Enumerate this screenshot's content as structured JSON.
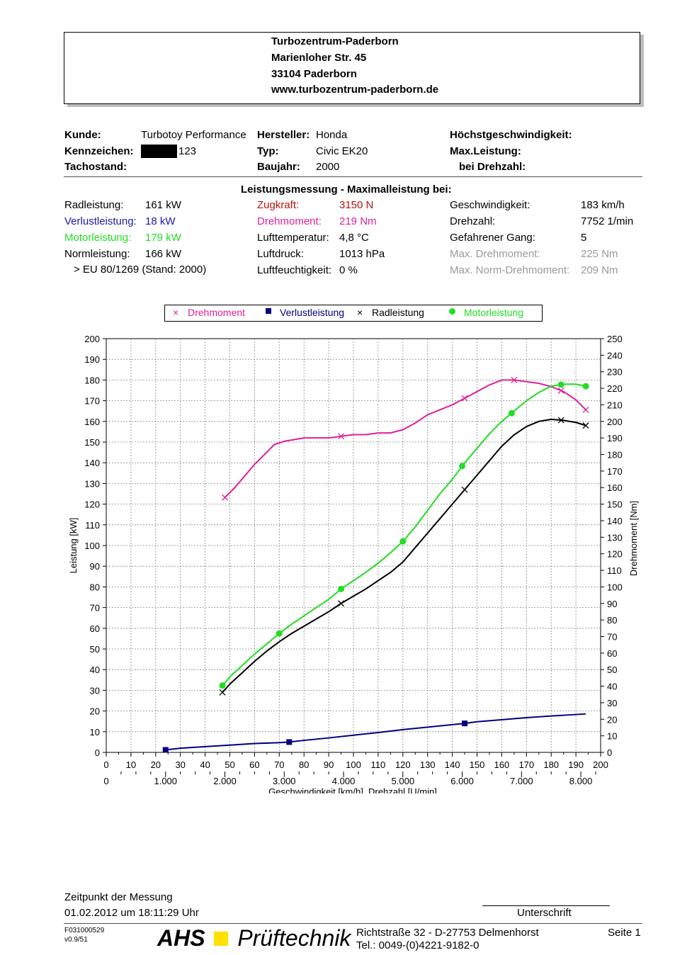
{
  "header": {
    "line1": "Turbozentrum-Paderborn",
    "line2": "Marienloher Str. 45",
    "line3": "33104 Paderborn",
    "line4": "www.turbozentrum-paderborn.de"
  },
  "info": {
    "kunde_label": "Kunde:",
    "kunde_value": "Turbotoy Performance",
    "kennzeichen_label": "Kennzeichen:",
    "kennzeichen_value": "123",
    "tachostand_label": "Tachostand:",
    "hersteller_label": "Hersteller:",
    "hersteller_value": "Honda",
    "typ_label": "Typ:",
    "typ_value": "Civic EK20",
    "baujahr_label": "Baujahr:",
    "baujahr_value": "2000",
    "hoechst_label": "Höchstgeschwindigkeit:",
    "maxleistung_label": "Max.Leistung:",
    "beidrehzahl_label": "bei Drehzahl:"
  },
  "measurement": {
    "title": "Leistungsmessung - Maximalleistung bei:",
    "col1": [
      {
        "label": "Radleistung:",
        "value": "161 kW",
        "color": "#000000"
      },
      {
        "label": "Verlustleistung:",
        "value": "18 kW",
        "color": "#1a1aaa"
      },
      {
        "label": "Motorleistung:",
        "value": "179 kW",
        "color": "#22dd22"
      },
      {
        "label": "Normleistung:",
        "value": "166 kW",
        "color": "#000000"
      }
    ],
    "norm_note": "> EU 80/1269 (Stand: 2000)",
    "col2": [
      {
        "label": "Zugkraft:",
        "value": "3150 N",
        "color": "#bb1111"
      },
      {
        "label": "Drehmoment:",
        "value": "219 Nm",
        "color": "#e0209a"
      },
      {
        "label": "Lufttemperatur:",
        "value": "4,8 °C",
        "color": "#000000"
      },
      {
        "label": "Luftdruck:",
        "value": "1013 hPa",
        "color": "#000000"
      },
      {
        "label": "Luftfeuchtigkeit:",
        "value": "0 %",
        "color": "#000000"
      }
    ],
    "col3": [
      {
        "label": "Geschwindigkeit:",
        "value": "183 km/h",
        "color": "#000000"
      },
      {
        "label": "Drehzahl:",
        "value": "7752 1/min",
        "color": "#000000"
      },
      {
        "label": "Gefahrener Gang:",
        "value": "5",
        "color": "#000000"
      },
      {
        "label": "Max. Drehmoment:",
        "value": "225 Nm",
        "color": "#999999"
      },
      {
        "label": "Max. Norm-Drehmoment:",
        "value": "209 Nm",
        "color": "#999999"
      }
    ]
  },
  "chart_data": {
    "type": "line",
    "xlabel": "Geschwindigkeit [km/h], Drehzahl [U/min]",
    "ylabel": "Leistung [kW]",
    "y2label": "Drehmoment [Nm]",
    "xlim": [
      0,
      200
    ],
    "ylim": [
      0,
      200
    ],
    "y2lim": [
      0,
      250
    ],
    "x_ticks": [
      "0",
      "10",
      "20",
      "30",
      "40",
      "50",
      "60",
      "70",
      "80",
      "90",
      "100",
      "110",
      "120",
      "130",
      "140",
      "150",
      "160",
      "170",
      "180",
      "190",
      "200"
    ],
    "rpm_ticks": [
      "0",
      "1.000",
      "2.000",
      "3.000",
      "4.000",
      "5.000",
      "6.000",
      "7.000",
      "8.000"
    ],
    "y_ticks": [
      "0",
      "10",
      "20",
      "30",
      "40",
      "50",
      "60",
      "70",
      "80",
      "90",
      "100",
      "110",
      "120",
      "130",
      "140",
      "150",
      "160",
      "170",
      "180",
      "190",
      "200"
    ],
    "y2_ticks": [
      "0",
      "10",
      "20",
      "30",
      "40",
      "50",
      "60",
      "70",
      "80",
      "90",
      "100",
      "110",
      "120",
      "130",
      "140",
      "150",
      "160",
      "170",
      "180",
      "190",
      "200",
      "210",
      "220",
      "230",
      "240",
      "250"
    ],
    "grid": true,
    "legend_position": "top",
    "series": [
      {
        "name": "Drehmoment",
        "color": "#e0209a",
        "marker": "x",
        "axis": "right",
        "x": [
          48,
          52,
          56,
          60,
          64,
          68,
          72,
          76,
          80,
          85,
          90,
          95,
          100,
          105,
          110,
          115,
          120,
          125,
          130,
          135,
          140,
          145,
          150,
          155,
          160,
          165,
          170,
          175,
          180,
          185,
          190,
          194
        ],
        "y": [
          154,
          160,
          167,
          174,
          180,
          186,
          188,
          189,
          190,
          190,
          190,
          191,
          192,
          192,
          193,
          193,
          195,
          199,
          204,
          207,
          210,
          214,
          218,
          222,
          225,
          225,
          224,
          223,
          221,
          218,
          213,
          207
        ],
        "markers_x": [
          48,
          95,
          145,
          165,
          184,
          194
        ]
      },
      {
        "name": "Verlustleistung",
        "color": "#000080",
        "marker": "square",
        "axis": "left",
        "x": [
          24,
          30,
          40,
          50,
          60,
          70,
          74,
          80,
          90,
          100,
          110,
          120,
          130,
          140,
          145,
          150,
          160,
          170,
          180,
          190,
          194
        ],
        "y": [
          1.2,
          2.0,
          2.8,
          3.5,
          4.3,
          4.7,
          5.0,
          5.8,
          7.0,
          8.3,
          9.6,
          11.0,
          12.2,
          13.4,
          14.0,
          14.8,
          15.8,
          16.8,
          17.6,
          18.3,
          18.6
        ],
        "markers_x": [
          24,
          74,
          145
        ]
      },
      {
        "name": "Radleistung",
        "color": "#000000",
        "marker": "x",
        "axis": "left",
        "x": [
          47,
          50,
          55,
          60,
          65,
          70,
          75,
          80,
          85,
          90,
          95,
          100,
          105,
          110,
          115,
          120,
          125,
          130,
          135,
          140,
          145,
          150,
          155,
          160,
          165,
          170,
          175,
          180,
          185,
          190,
          194
        ],
        "y": [
          29,
          33,
          38.5,
          44,
          49,
          53.5,
          57.5,
          61,
          64.5,
          68,
          72,
          75.5,
          79,
          83,
          87,
          92,
          99,
          106,
          113,
          120,
          127,
          134,
          141,
          148,
          153.5,
          157.5,
          160,
          161,
          160.5,
          159.5,
          158
        ],
        "markers_x": [
          47,
          95,
          145,
          184,
          194
        ]
      },
      {
        "name": "Motorleistung",
        "color": "#22dd22",
        "marker": "dot",
        "axis": "left",
        "x": [
          47,
          50,
          55,
          60,
          65,
          70,
          75,
          80,
          85,
          90,
          95,
          100,
          105,
          110,
          115,
          120,
          125,
          130,
          135,
          140,
          145,
          150,
          155,
          160,
          165,
          170,
          175,
          180,
          185,
          190,
          194
        ],
        "y": [
          32.3,
          36.5,
          42,
          47.5,
          52.5,
          57.5,
          62,
          66,
          70,
          74,
          79,
          83,
          87,
          91.5,
          96.5,
          102,
          109,
          117,
          125,
          132,
          140,
          147,
          154,
          160,
          165,
          170,
          174,
          177,
          178,
          178,
          177
        ],
        "markers_x": [
          47,
          70,
          95,
          120,
          144,
          164,
          184,
          194
        ]
      }
    ]
  },
  "footer": {
    "zeitpunkt_label": "Zeitpunkt der Messung",
    "zeitpunkt_value": "01.02.2012 um 18:11:29 Uhr",
    "unterschrift": "Unterschrift",
    "code1": "F031000529",
    "code2": "v0.9/51",
    "logo_ahs": "AHS",
    "logo_text": "Prüftechnik",
    "address": "Richtstraße 32 - D-27753 Delmenhorst",
    "phone": "Tel.: 0049-(0)4221-9182-0",
    "page": "Seite 1"
  }
}
